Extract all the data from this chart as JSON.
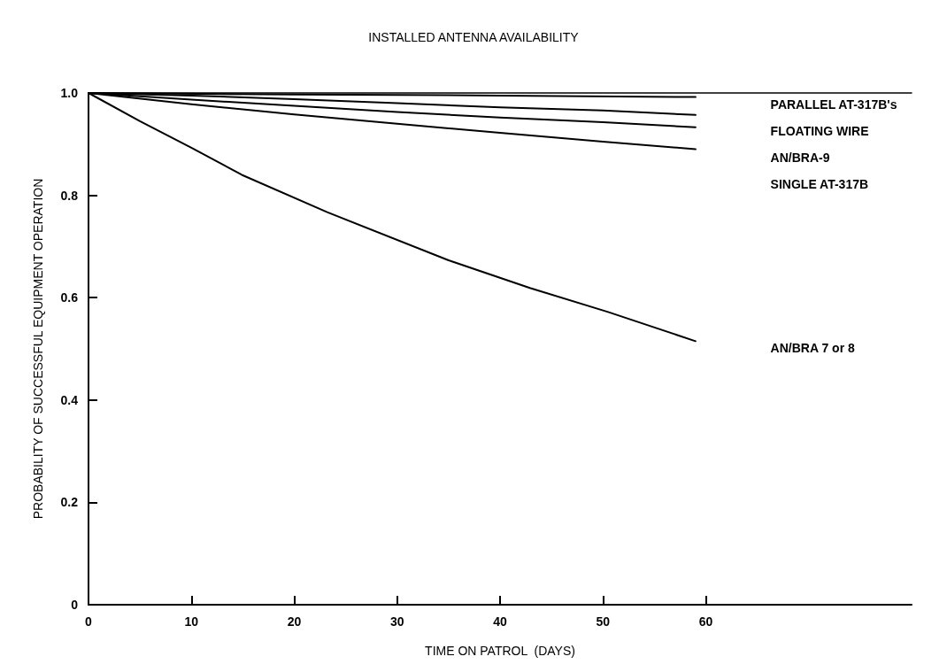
{
  "chart_data": {
    "type": "line",
    "title": "INSTALLED ANTENNA AVAILABILITY",
    "xlabel": "TIME ON PATROL  (DAYS)",
    "ylabel": "PROBABILITY OF SUCCESSFUL EQUIPMENT OPERATION",
    "xlim": [
      0,
      80
    ],
    "xticks": [
      0,
      10,
      20,
      30,
      40,
      50,
      60
    ],
    "ylim": [
      0,
      1.0
    ],
    "yticks": [
      0,
      0.2,
      0.4,
      0.6,
      0.8,
      {
        "value": 1.0,
        "label": "1.0"
      }
    ],
    "series": [
      {
        "name": "PARALLEL AT-317B's",
        "color": "#000000",
        "x": [
          0,
          20,
          40,
          59
        ],
        "values": [
          1.0,
          0.997,
          0.995,
          0.992
        ]
      },
      {
        "name": "FLOATING WIRE",
        "color": "#000000",
        "x": [
          0,
          10,
          20,
          30,
          40,
          50,
          59
        ],
        "values": [
          1.0,
          0.995,
          0.988,
          0.98,
          0.972,
          0.966,
          0.957
        ]
      },
      {
        "name": "AN/BRA-9",
        "color": "#000000",
        "x": [
          0,
          10,
          20,
          30,
          40,
          50,
          59
        ],
        "values": [
          1.0,
          0.987,
          0.975,
          0.963,
          0.952,
          0.943,
          0.933
        ]
      },
      {
        "name": "SINGLE AT-317B",
        "color": "#000000",
        "x": [
          0,
          10,
          20,
          30,
          40,
          50,
          59
        ],
        "values": [
          1.0,
          0.978,
          0.958,
          0.94,
          0.922,
          0.905,
          0.89
        ]
      },
      {
        "name": "AN/BRA 7 or 8",
        "color": "#000000",
        "x": [
          0,
          5,
          10,
          14.9,
          23.2,
          35,
          42.9,
          50.5,
          59
        ],
        "values": [
          1.0,
          0.945,
          0.893,
          0.84,
          0.767,
          0.673,
          0.619,
          0.572,
          0.515
        ]
      }
    ],
    "grid": false,
    "legend": false,
    "marker": "none",
    "line_style": "solid"
  }
}
